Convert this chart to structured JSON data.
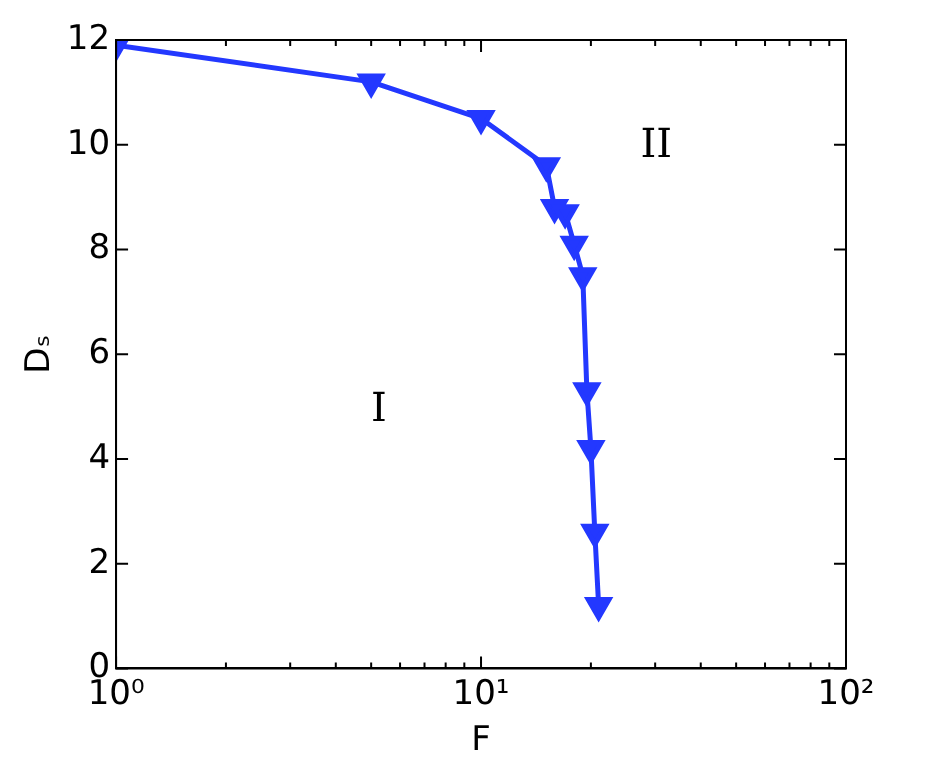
{
  "chart_data": {
    "type": "line",
    "xlabel": "F",
    "ylabel": "Dₛ",
    "log": "x",
    "x": [
      1,
      5,
      10,
      15.1,
      15.9,
      17,
      18,
      19,
      19.5,
      20,
      20.5,
      21
    ],
    "series": [
      {
        "color": "#2338ff",
        "values": [
          11.9,
          11.2,
          10.5,
          9.6,
          8.8,
          8.7,
          8.1,
          7.5,
          5.3,
          4.2,
          2.6,
          1.2
        ]
      }
    ],
    "xlim": [
      1,
      100
    ],
    "ylim": [
      0,
      12
    ],
    "xticks": [
      {
        "value": 1,
        "label": "10⁰"
      },
      {
        "value": 2,
        "label": null
      },
      {
        "value": 3,
        "label": null
      },
      {
        "value": 4,
        "label": null
      },
      {
        "value": 5,
        "label": null
      },
      {
        "value": 6,
        "label": null
      },
      {
        "value": 7,
        "label": null
      },
      {
        "value": 8,
        "label": null
      },
      {
        "value": 9,
        "label": null
      },
      {
        "value": 10,
        "label": "10¹"
      },
      {
        "value": 20,
        "label": null
      },
      {
        "value": 30,
        "label": null
      },
      {
        "value": 40,
        "label": null
      },
      {
        "value": 50,
        "label": null
      },
      {
        "value": 60,
        "label": null
      },
      {
        "value": 70,
        "label": null
      },
      {
        "value": 80,
        "label": null
      },
      {
        "value": 90,
        "label": null
      },
      {
        "value": 100,
        "label": "10²"
      }
    ],
    "yticks": [
      0,
      2,
      4,
      6,
      8,
      10,
      12
    ],
    "annotations": [
      "I",
      "II"
    ],
    "marker": "triangle",
    "line_style": "solid",
    "legend": false
  }
}
